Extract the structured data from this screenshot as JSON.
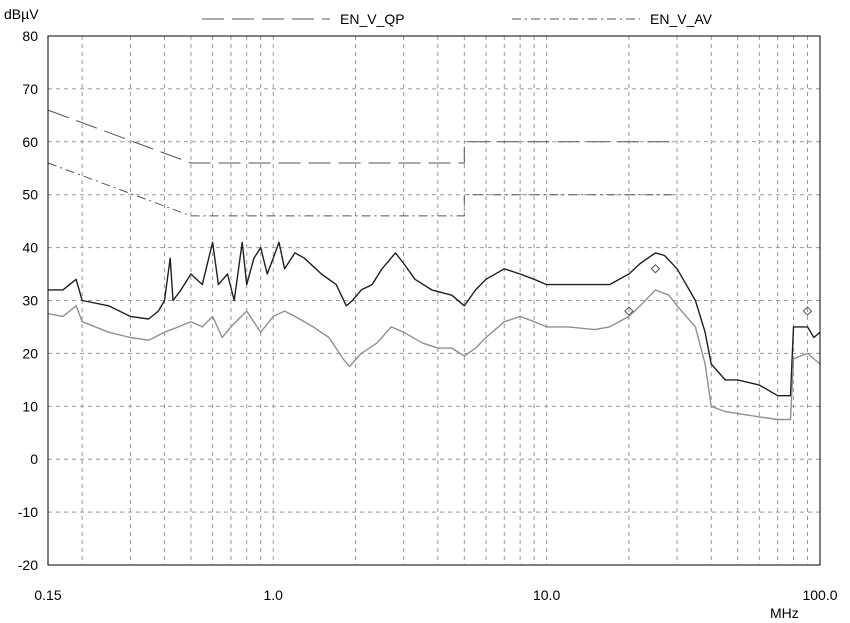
{
  "chart_data": {
    "type": "line",
    "ylabel": "dBµV",
    "xlabel": "MHz",
    "x_scale": "log",
    "xlim": [
      0.15,
      100.0
    ],
    "ylim": [
      -20,
      80
    ],
    "grid": true,
    "legend_position": "top",
    "x_tick_labels": [
      {
        "value": 0.15,
        "label": "0.15"
      },
      {
        "value": 1.0,
        "label": "1.0"
      },
      {
        "value": 10.0,
        "label": "10.0"
      },
      {
        "value": 100.0,
        "label": "100.0"
      }
    ],
    "y_ticks": [
      80,
      70,
      60,
      50,
      40,
      30,
      20,
      10,
      0,
      -10,
      -20
    ],
    "series": [
      {
        "name": "EN_V_QP",
        "style": "long-dash",
        "color": "#555555",
        "points": [
          [
            0.15,
            66
          ],
          [
            0.5,
            56
          ],
          [
            5.0,
            56
          ],
          [
            5.0,
            60
          ],
          [
            30.0,
            60
          ]
        ]
      },
      {
        "name": "EN_V_AV",
        "style": "dash-dot",
        "color": "#555555",
        "points": [
          [
            0.15,
            56
          ],
          [
            0.5,
            46
          ],
          [
            5.0,
            46
          ],
          [
            5.0,
            50
          ],
          [
            30.0,
            50
          ]
        ]
      },
      {
        "style": "solid",
        "color": "#202020",
        "points": [
          [
            0.15,
            32
          ],
          [
            0.17,
            32
          ],
          [
            0.19,
            34
          ],
          [
            0.2,
            30
          ],
          [
            0.25,
            29
          ],
          [
            0.3,
            27
          ],
          [
            0.35,
            26.5
          ],
          [
            0.38,
            28
          ],
          [
            0.4,
            30
          ],
          [
            0.42,
            38
          ],
          [
            0.43,
            30
          ],
          [
            0.46,
            32
          ],
          [
            0.5,
            35
          ],
          [
            0.55,
            33
          ],
          [
            0.6,
            41
          ],
          [
            0.63,
            33
          ],
          [
            0.68,
            35
          ],
          [
            0.72,
            30
          ],
          [
            0.77,
            41
          ],
          [
            0.8,
            33
          ],
          [
            0.85,
            38
          ],
          [
            0.9,
            40
          ],
          [
            0.95,
            35
          ],
          [
            1.0,
            38
          ],
          [
            1.05,
            41
          ],
          [
            1.1,
            36
          ],
          [
            1.2,
            39
          ],
          [
            1.3,
            38
          ],
          [
            1.5,
            35
          ],
          [
            1.7,
            33
          ],
          [
            1.85,
            29
          ],
          [
            1.95,
            30
          ],
          [
            2.1,
            32
          ],
          [
            2.3,
            33
          ],
          [
            2.5,
            36
          ],
          [
            2.8,
            39
          ],
          [
            3.0,
            37
          ],
          [
            3.3,
            34
          ],
          [
            3.8,
            32
          ],
          [
            4.5,
            31
          ],
          [
            5.0,
            29
          ],
          [
            5.5,
            32
          ],
          [
            6.0,
            34
          ],
          [
            7.0,
            36
          ],
          [
            8.0,
            35
          ],
          [
            9.0,
            34
          ],
          [
            10.0,
            33
          ],
          [
            12.0,
            33
          ],
          [
            15.0,
            33
          ],
          [
            17.0,
            33
          ],
          [
            20.0,
            35
          ],
          [
            22.0,
            37
          ],
          [
            25.0,
            39
          ],
          [
            27.0,
            38.5
          ],
          [
            30.0,
            36
          ],
          [
            35.0,
            30
          ],
          [
            38.0,
            24
          ],
          [
            40.0,
            18
          ],
          [
            45.0,
            15
          ],
          [
            50.0,
            15
          ],
          [
            60.0,
            14
          ],
          [
            70.0,
            12
          ],
          [
            78.0,
            12
          ],
          [
            80.0,
            25
          ],
          [
            90.0,
            25
          ],
          [
            95.0,
            23
          ],
          [
            100.0,
            24
          ]
        ]
      },
      {
        "style": "solid",
        "color": "#909090",
        "points": [
          [
            0.15,
            27.5
          ],
          [
            0.17,
            27
          ],
          [
            0.19,
            29
          ],
          [
            0.2,
            26
          ],
          [
            0.25,
            24
          ],
          [
            0.3,
            23
          ],
          [
            0.35,
            22.5
          ],
          [
            0.4,
            24
          ],
          [
            0.45,
            25
          ],
          [
            0.5,
            26
          ],
          [
            0.55,
            25
          ],
          [
            0.6,
            27
          ],
          [
            0.65,
            23
          ],
          [
            0.7,
            25
          ],
          [
            0.8,
            28
          ],
          [
            0.9,
            24
          ],
          [
            1.0,
            27
          ],
          [
            1.1,
            28
          ],
          [
            1.2,
            27
          ],
          [
            1.4,
            25
          ],
          [
            1.6,
            23
          ],
          [
            1.8,
            19
          ],
          [
            1.9,
            17.5
          ],
          [
            2.1,
            20
          ],
          [
            2.4,
            22
          ],
          [
            2.7,
            25
          ],
          [
            3.0,
            24
          ],
          [
            3.5,
            22
          ],
          [
            4.0,
            21
          ],
          [
            4.5,
            21
          ],
          [
            5.0,
            19.5
          ],
          [
            5.5,
            21
          ],
          [
            6.0,
            23
          ],
          [
            7.0,
            26
          ],
          [
            8.0,
            27
          ],
          [
            9.0,
            26
          ],
          [
            10.0,
            25
          ],
          [
            12.0,
            25
          ],
          [
            15.0,
            24.5
          ],
          [
            17.0,
            25
          ],
          [
            20.0,
            27
          ],
          [
            22.0,
            29
          ],
          [
            25.0,
            32
          ],
          [
            28.0,
            31
          ],
          [
            30.0,
            29
          ],
          [
            35.0,
            25
          ],
          [
            38.0,
            18
          ],
          [
            40.0,
            10
          ],
          [
            45.0,
            9
          ],
          [
            60.0,
            8
          ],
          [
            70.0,
            7.5
          ],
          [
            78.0,
            7.5
          ],
          [
            80.0,
            19
          ],
          [
            90.0,
            20
          ],
          [
            100.0,
            18
          ]
        ]
      }
    ],
    "marker_points": [
      [
        25.0,
        36
      ],
      [
        20.0,
        28
      ],
      [
        90.0,
        28
      ]
    ]
  }
}
